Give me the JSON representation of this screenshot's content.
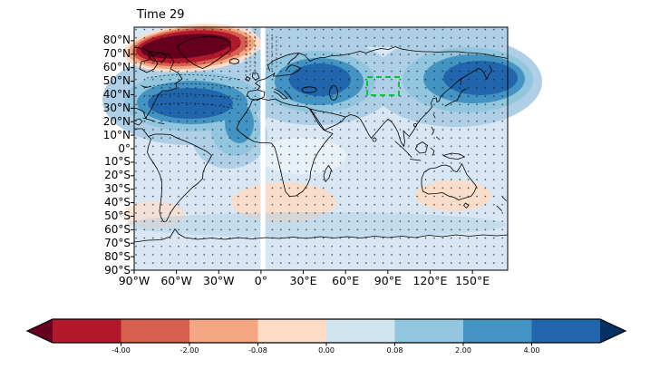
{
  "figure": {
    "title": "Time 29"
  },
  "axes": {
    "x_tick_labels": [
      "90°W",
      "60°W",
      "30°W",
      "0°",
      "30°E",
      "60°E",
      "90°E",
      "120°E",
      "150°E"
    ],
    "y_tick_labels": [
      "80°N",
      "70°N",
      "60°N",
      "50°N",
      "40°N",
      "30°N",
      "20°N",
      "10°N",
      "0°",
      "10°S",
      "20°S",
      "30°S",
      "40°S",
      "50°S",
      "60°S",
      "70°S",
      "80°S",
      "90°S"
    ]
  },
  "palette": {
    "deep_negative": "#67001f",
    "strong_negative": "#b2182b",
    "negative": "#d6604d",
    "weak_negative": "#f4a582",
    "faint_negative": "#fddbc7",
    "faint_positive": "#d1e5f0",
    "weak_positive": "#92c5de",
    "positive": "#4393c3",
    "strong_positive": "#2166ac",
    "deep_positive": "#053061",
    "ocean_base": "#d8e7f3",
    "band_blue": "#aecfe5",
    "pale_neutral": "#e9f1f8",
    "highlight_green": "#00c832",
    "coastline": "#000000"
  },
  "colorbar": {
    "orientation": "horizontal",
    "extend": "both",
    "tick_labels": [
      "-4.00",
      "-2.00",
      "-0.08",
      "0.00",
      "0.08",
      "2.00",
      "4.00"
    ],
    "segment_colors": [
      "#b2182b",
      "#d6604d",
      "#f4a582",
      "#fddbc7",
      "#d1e5f0",
      "#92c5de",
      "#4393c3",
      "#2166ac"
    ],
    "arrow_left_color": "#67001f",
    "arrow_right_color": "#053061"
  },
  "chart_data": {
    "type": "heatmap",
    "title": "Time 29",
    "projection": "equirectangular world map (filled contours over coastlines)",
    "lon_range": [
      -90,
      175
    ],
    "lat_range": [
      -90,
      90
    ],
    "x_ticks_deg": [
      -90,
      -60,
      -30,
      0,
      30,
      60,
      90,
      120,
      150
    ],
    "y_ticks_deg": [
      80,
      70,
      60,
      50,
      40,
      30,
      20,
      10,
      0,
      -10,
      -20,
      -30,
      -40,
      -50,
      -60,
      -70,
      -80,
      -90
    ],
    "contour_levels": [
      -4.0,
      -2.0,
      -0.08,
      0.0,
      0.08,
      2.0,
      4.0
    ],
    "colormap": "RdBu (red negative, blue positive), extended both ends",
    "stippling": "small black dots in a regular grid over nearly the whole map",
    "anomaly_regions": [
      {
        "region": "Greenland / northwest North Atlantic",
        "lon": [
          -70,
          -15
        ],
        "lat": [
          55,
          85
        ],
        "value": -4.5,
        "description": "strong negative core (dark red, below -4)"
      },
      {
        "region": "central North Atlantic / eastern North America",
        "lon": [
          -85,
          -5
        ],
        "lat": [
          25,
          50
        ],
        "value": 4.5,
        "description": "strong positive core (dark blue, above 4)"
      },
      {
        "region": "Europe / western Russia",
        "lon": [
          5,
          70
        ],
        "lat": [
          40,
          70
        ],
        "value": 4.0,
        "description": "strong positive core (dark blue)"
      },
      {
        "region": "East Asia / northwest Pacific",
        "lon": [
          105,
          175
        ],
        "lat": [
          35,
          65
        ],
        "value": 4.0,
        "description": "strong positive core (dark blue)"
      },
      {
        "region": "tropical Atlantic tongue",
        "lon": [
          -35,
          -5
        ],
        "lat": [
          -10,
          20
        ],
        "value": 2.5,
        "description": "positive tongue extending south from the Atlantic core"
      },
      {
        "region": "South Atlantic / southern Africa",
        "lon": [
          -20,
          35
        ],
        "lat": [
          -55,
          -25
        ],
        "value": -0.5,
        "description": "weak negative patch (light orange)"
      },
      {
        "region": "south of Australia",
        "lon": [
          115,
          165
        ],
        "lat": [
          -50,
          -28
        ],
        "value": -0.5,
        "description": "weak negative patch (light orange)"
      },
      {
        "region": "southeast Pacific, bottom left",
        "lon": [
          -90,
          -65
        ],
        "lat": [
          -65,
          -45
        ],
        "value": -0.3,
        "description": "weak negative patch"
      },
      {
        "region": "remaining global background",
        "lon": [
          -90,
          175
        ],
        "lat": [
          -90,
          90
        ],
        "value": 0.5,
        "description": "weak positive (pale blue)"
      }
    ],
    "highlight_box": {
      "lon": [
        75,
        98
      ],
      "lat": [
        40,
        53
      ],
      "style": "green dashed rectangle"
    },
    "missing_data_strip": {
      "lon": [
        0,
        3
      ],
      "description": "narrow white vertical strip of missing data at the prime meridian"
    },
    "hatching": "short dashed black contour/hatch marks over the North Atlantic positive core and near the prime meridian at high northern latitudes",
    "legend_position": "horizontal colorbar below the map"
  }
}
